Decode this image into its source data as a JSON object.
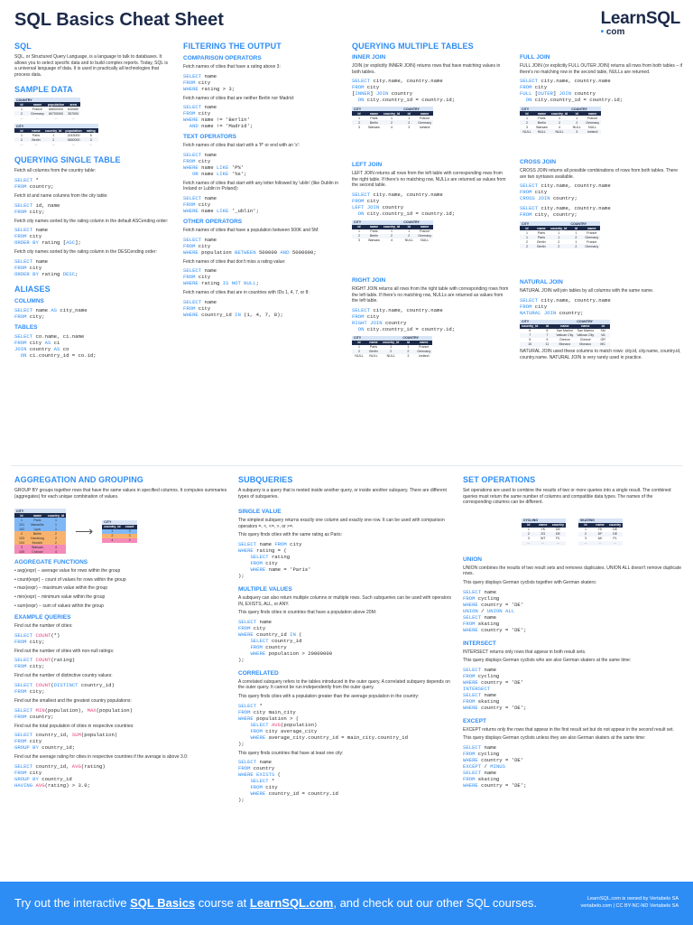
{
  "header": {
    "title": "SQL Basics Cheat Sheet",
    "logo_main": "LearnSQL",
    "logo_sub": "com"
  },
  "sql": {
    "heading": "SQL",
    "intro": "SQL, or Structured Query Language, is a language to talk to databases. It allows you to select specific data and to build complex reports. Today, SQL is a universal language of data. It is used in practically all technologies that process data."
  },
  "sample_data": {
    "heading": "SAMPLE DATA",
    "country_table": {
      "name": "COUNTRY",
      "columns": [
        "id",
        "name",
        "population",
        "area"
      ],
      "rows": [
        [
          "1",
          "France",
          "66600000",
          "640680"
        ],
        [
          "2",
          "Germany",
          "80700000",
          "357000"
        ],
        [
          "...",
          "...",
          "...",
          "..."
        ]
      ]
    },
    "city_table": {
      "name": "CITY",
      "columns": [
        "id",
        "name",
        "country_id",
        "population",
        "rating"
      ],
      "rows": [
        [
          "1",
          "Paris",
          "1",
          "2243000",
          "5"
        ],
        [
          "2",
          "Berlin",
          "2",
          "3460000",
          "3"
        ],
        [
          "...",
          "...",
          "...",
          "...",
          "..."
        ]
      ]
    }
  },
  "querying_single": {
    "heading": "QUERYING SINGLE TABLE",
    "items": [
      {
        "text": "Fetch all columns from the country table:",
        "code": "SELECT *\nFROM country;"
      },
      {
        "text": "Fetch id and name columns from the city table:",
        "code": "SELECT id, name\nFROM city;"
      },
      {
        "text": "Fetch city names sorted by the rating column in the default ASCending order:",
        "code": "SELECT name\nFROM city\nORDER BY rating [ASC];"
      },
      {
        "text": "Fetch city names sorted by the rating column in the DESCending order:",
        "code": "SELECT name\nFROM city\nORDER BY rating DESC;"
      }
    ]
  },
  "aliases": {
    "heading": "ALIASES",
    "columns_heading": "COLUMNS",
    "columns_code": "SELECT name AS city_name\nFROM city;",
    "tables_heading": "TABLES",
    "tables_code": "SELECT co.name, ci.name\nFROM city AS ci\nJOIN country AS co\n  ON ci.country_id = co.id;"
  },
  "filtering": {
    "heading": "FILTERING THE OUTPUT",
    "comparison_heading": "COMPARISON OPERATORS",
    "comparison": [
      {
        "text": "Fetch names of cities that have a rating above 3:",
        "code": "SELECT name\nFROM city\nWHERE rating > 3;"
      },
      {
        "text": "Fetch names of cities that are neither Berlin nor Madrid:",
        "code": "SELECT name\nFROM city\nWHERE name != 'Berlin'\n  AND name != 'Madrid';"
      }
    ],
    "text_heading": "TEXT OPERATORS",
    "text_ops": [
      {
        "text": "Fetch names of cities that start with a 'P' or end with an 's':",
        "code": "SELECT name\nFROM city\nWHERE name LIKE 'P%'\n   OR name LIKE '%s';"
      },
      {
        "text": "Fetch names of cities that start with any letter followed by 'ublin' (like Dublin in Ireland or Lublin in Poland):",
        "code": "SELECT name\nFROM city\nWHERE name LIKE '_ublin';"
      }
    ],
    "other_heading": "OTHER OPERATORS",
    "other_ops": [
      {
        "text": "Fetch names of cities that have a population between 500K and 5M:",
        "code": "SELECT name\nFROM city\nWHERE population BETWEEN 500000 AND 5000000;"
      },
      {
        "text": "Fetch names of cities that don't miss a rating value:",
        "code": "SELECT name\nFROM city\nWHERE rating IS NOT NULL;"
      },
      {
        "text": "Fetch names of cities that are in countries with IDs 1, 4, 7, or 8:",
        "code": "SELECT name\nFROM city\nWHERE country_id IN (1, 4, 7, 8);"
      }
    ]
  },
  "querying_multiple": {
    "heading": "QUERYING MULTIPLE TABLES",
    "inner": {
      "heading": "INNER JOIN",
      "text": "JOIN (or explicitly INNER JOIN) returns rows that have matching values in both tables.",
      "code": "SELECT city.name, country.name\nFROM city\n[INNER] JOIN country\n  ON city.country_id = country.id;",
      "rows": [
        [
          "1",
          "Paris",
          "1",
          "1",
          "France"
        ],
        [
          "2",
          "Berlin",
          "2",
          "2",
          "Germany"
        ],
        [
          "3",
          "Warsaw",
          "4",
          "3",
          "Iceland"
        ]
      ]
    },
    "left": {
      "heading": "LEFT JOIN",
      "text": "LEFT JOIN returns all rows from the left table with corresponding rows from the right table. If there's no matching row, NULLs are returned as values from the second table.",
      "code": "SELECT city.name, country.name\nFROM city\nLEFT JOIN country\n  ON city.country_id = country.id;",
      "rows": [
        [
          "1",
          "Paris",
          "1",
          "1",
          "France"
        ],
        [
          "2",
          "Berlin",
          "2",
          "2",
          "Germany"
        ],
        [
          "3",
          "Warsaw",
          "4",
          "NULL",
          "NULL"
        ]
      ]
    },
    "right": {
      "heading": "RIGHT JOIN",
      "text": "RIGHT JOIN returns all rows from the right table with corresponding rows from the left table. If there's no matching row, NULLs are returned as values from the left table.",
      "code": "SELECT city.name, country.name\nFROM city\nRIGHT JOIN country\n  ON city.country_id = country.id;",
      "rows": [
        [
          "1",
          "Paris",
          "1",
          "1",
          "France"
        ],
        [
          "2",
          "Berlin",
          "2",
          "2",
          "Germany"
        ],
        [
          "NULL",
          "NULL",
          "NULL",
          "3",
          "Iceland"
        ]
      ]
    },
    "full": {
      "heading": "FULL JOIN",
      "text": "FULL JOIN (or explicitly FULL OUTER JOIN) returns all rows from both tables – if there's no matching row in the second table, NULLs are returned.",
      "code": "SELECT city.name, country.name\nFROM city\nFULL [OUTER] JOIN country\n  ON city.country_id = country.id;",
      "rows": [
        [
          "1",
          "Paris",
          "1",
          "1",
          "France"
        ],
        [
          "2",
          "Berlin",
          "2",
          "2",
          "Germany"
        ],
        [
          "3",
          "Warsaw",
          "4",
          "NULL",
          "NULL"
        ],
        [
          "NULL",
          "NULL",
          "NULL",
          "3",
          "Iceland"
        ]
      ]
    },
    "cross": {
      "heading": "CROSS JOIN",
      "text": "CROSS JOIN returns all possible combinations of rows from both tables. There are two syntaxes available.",
      "code1": "SELECT city.name, country.name\nFROM city\nCROSS JOIN country;",
      "code2": "SELECT city.name, country.name\nFROM city, country;",
      "rows": [
        [
          "1",
          "Paris",
          "1",
          "1",
          "France"
        ],
        [
          "1",
          "Paris",
          "1",
          "2",
          "Germany"
        ],
        [
          "2",
          "Berlin",
          "2",
          "1",
          "France"
        ],
        [
          "2",
          "Berlin",
          "2",
          "2",
          "Germany"
        ]
      ]
    },
    "natural": {
      "heading": "NATURAL JOIN",
      "text": "NATURAL JOIN will join tables by all columns with the same name.",
      "code": "SELECT city.name, country.name\nFROM city\nNATURAL JOIN country;",
      "rows": [
        [
          "6",
          "6",
          "San Marino",
          "San Marino",
          "SM"
        ],
        [
          "7",
          "7",
          "Vatican City",
          "Vatican City",
          "VA"
        ],
        [
          "5",
          "9",
          "Greece",
          "Greece",
          "GR"
        ],
        [
          "10",
          "11",
          "Monaco",
          "Monaco",
          "MC"
        ]
      ],
      "note": "NATURAL JOIN used these columns to match rows: city.id, city.name, country.id, country.name. NATURAL JOIN is very rarely used in practice."
    },
    "join_columns": [
      "id",
      "name",
      "country_id",
      "id",
      "name"
    ],
    "natural_columns": [
      "country_id",
      "id",
      "name",
      "name",
      "id"
    ],
    "city_label": "CITY",
    "country_label": "COUNTRY"
  },
  "aggregation": {
    "heading": "AGGREGATION AND GROUPING",
    "text": "GROUP BY groups together rows that have the same values in specified columns. It computes summaries (aggregates) for each unique combination of values.",
    "city_label": "CITY",
    "city_columns": [
      "id",
      "name",
      "country_id"
    ],
    "city_rows": [
      [
        "1",
        "Paris",
        "1"
      ],
      [
        "101",
        "Marseille",
        "1"
      ],
      [
        "102",
        "Lyon",
        "1"
      ],
      [
        "2",
        "Berlin",
        "2"
      ],
      [
        "103",
        "Hamburg",
        "2"
      ],
      [
        "104",
        "Munich",
        "2"
      ],
      [
        "3",
        "Warsaw",
        "4"
      ],
      [
        "105",
        "Cracow",
        "4"
      ]
    ],
    "result_label": "CITY",
    "result_columns": [
      "country_id",
      "count"
    ],
    "result_rows": [
      [
        "1",
        "3"
      ],
      [
        "2",
        "3"
      ],
      [
        "4",
        "2"
      ]
    ],
    "functions_heading": "AGGREGATE FUNCTIONS",
    "functions": [
      "avg(expr) − average value for rows within the group",
      "count(expr) − count of values for rows within the group",
      "max(expr) − maximum value within the group",
      "min(expr) − minimum value within the group",
      "sum(expr) − sum of values within the group"
    ],
    "examples_heading": "EXAMPLE QUERIES",
    "examples": [
      {
        "text": "Find out the number of cities:",
        "code": "SELECT COUNT(*)\nFROM city;"
      },
      {
        "text": "Find out the number of cities with non-null ratings:",
        "code": "SELECT COUNT(rating)\nFROM city;"
      },
      {
        "text": "Find out the number of distinctive country values:",
        "code": "SELECT COUNT(DISTINCT country_id)\nFROM city;"
      },
      {
        "text": "Find out the smallest and the greatest country populations:",
        "code": "SELECT MIN(population), MAX(population)\nFROM country;"
      },
      {
        "text": "Find out the total population of cities in respective countries:",
        "code": "SELECT country_id, SUM(population)\nFROM city\nGROUP BY country_id;"
      },
      {
        "text": "Find out the average rating for cities in respective countries if the average is above 3.0:",
        "code": "SELECT country_id, AVG(rating)\nFROM city\nGROUP BY country_id\nHAVING AVG(rating) > 3.0;"
      }
    ]
  },
  "subqueries": {
    "heading": "SUBQUERIES",
    "text": "A subquery is a query that is nested inside another query, or inside another subquery. There are different types of subqueries.",
    "single_heading": "SINGLE VALUE",
    "single_text": "The simplest subquery returns exactly one column and exactly one row. It can be used with comparison operators =, <, <=, >, or >=.",
    "single_example": "This query finds cities with the same rating as Paris:",
    "single_code": "SELECT name FROM city\nWHERE rating = (\n    SELECT rating\n    FROM city\n    WHERE name = 'Paris'\n);",
    "multiple_heading": "MULTIPLE VALUES",
    "multiple_text": "A subquery can also return multiple columns or multiple rows. Such subqueries can be used with operators IN, EXISTS, ALL, or ANY.",
    "multiple_example": "This query finds cities in countries that have a population above 20M:",
    "multiple_code": "SELECT name\nFROM city\nWHERE country_id IN (\n    SELECT country_id\n    FROM country\n    WHERE population > 20000000\n);",
    "correlated_heading": "CORRELATED",
    "correlated_text": "A correlated subquery refers to the tables introduced in the outer query. A correlated subquery depends on the outer query. It cannot be run independently from the outer query.",
    "correlated_example": "This query finds cities with a population greater than the average population in the country:",
    "correlated_code": "SELECT *\nFROM city main_city\nWHERE population > (\n    SELECT AVG(population)\n    FROM city average_city\n    WHERE average_city.country_id = main_city.country_id\n);",
    "exists_example": "This query finds countries that have at least one city:",
    "exists_code": "SELECT name\nFROM country\nWHERE EXISTS (\n    SELECT *\n    FROM city\n    WHERE country_id = country.id\n);"
  },
  "set_ops": {
    "heading": "SET OPERATIONS",
    "text": "Set operations are used to combine the results of two or more queries into a single result. The combined queries must return the same number of columns and compatible data types. The names of the corresponding columns can be different.",
    "cycling_label": "CYCLING",
    "skating_label": "SKATING",
    "columns": [
      "id",
      "name",
      "country"
    ],
    "cycling_rows": [
      [
        "1",
        "YK",
        "DE"
      ],
      [
        "2",
        "ZG",
        "DE"
      ],
      [
        "3",
        "WT",
        "PL"
      ],
      [
        "...",
        "...",
        "..."
      ]
    ],
    "skating_rows": [
      [
        "1",
        "YK",
        "DE"
      ],
      [
        "2",
        "DF",
        "DE"
      ],
      [
        "3",
        "AK",
        "PL"
      ],
      [
        "...",
        "...",
        "..."
      ]
    ],
    "union_heading": "UNION",
    "union_text": "UNION combines the results of two result sets and removes duplicates. UNION ALL doesn't remove duplicate rows.",
    "union_example": "This query displays German cyclists together with German skaters:",
    "union_code": "SELECT name\nFROM cycling\nWHERE country = 'DE'\nUNION / UNION ALL\nSELECT name\nFROM skating\nWHERE country = 'DE';",
    "intersect_heading": "INTERSECT",
    "intersect_text": "INTERSECT returns only rows that appear in both result sets.",
    "intersect_example": "This query displays German cyclists who are also German skaters at the same time:",
    "intersect_code": "SELECT name\nFROM cycling\nWHERE country = 'DE'\nINTERSECT\nSELECT name\nFROM skating\nWHERE country = 'DE';",
    "except_heading": "EXCEPT",
    "except_text": "EXCEPT returns only the rows that appear in the first result set but do not appear in the second result set.",
    "except_example": "This query displays German cyclists unless they are also German skaters at the same time:",
    "except_code": "SELECT name\nFROM cycling\nWHERE country = 'DE'\nEXCEPT / MINUS\nSELECT name\nFROM skating\nWHERE country = 'DE';"
  },
  "footer": {
    "text_before": "Try out the interactive ",
    "link1": "SQL Basics",
    "text_mid": " course at ",
    "link2": "LearnSQL.com",
    "text_after": ", and check out our other SQL courses.",
    "right_line1": "LearnSQL.com is owned by Vertabelo SA",
    "right_line2": "vertabelo.com | CC BY-NC-ND Vertabelo SA"
  }
}
